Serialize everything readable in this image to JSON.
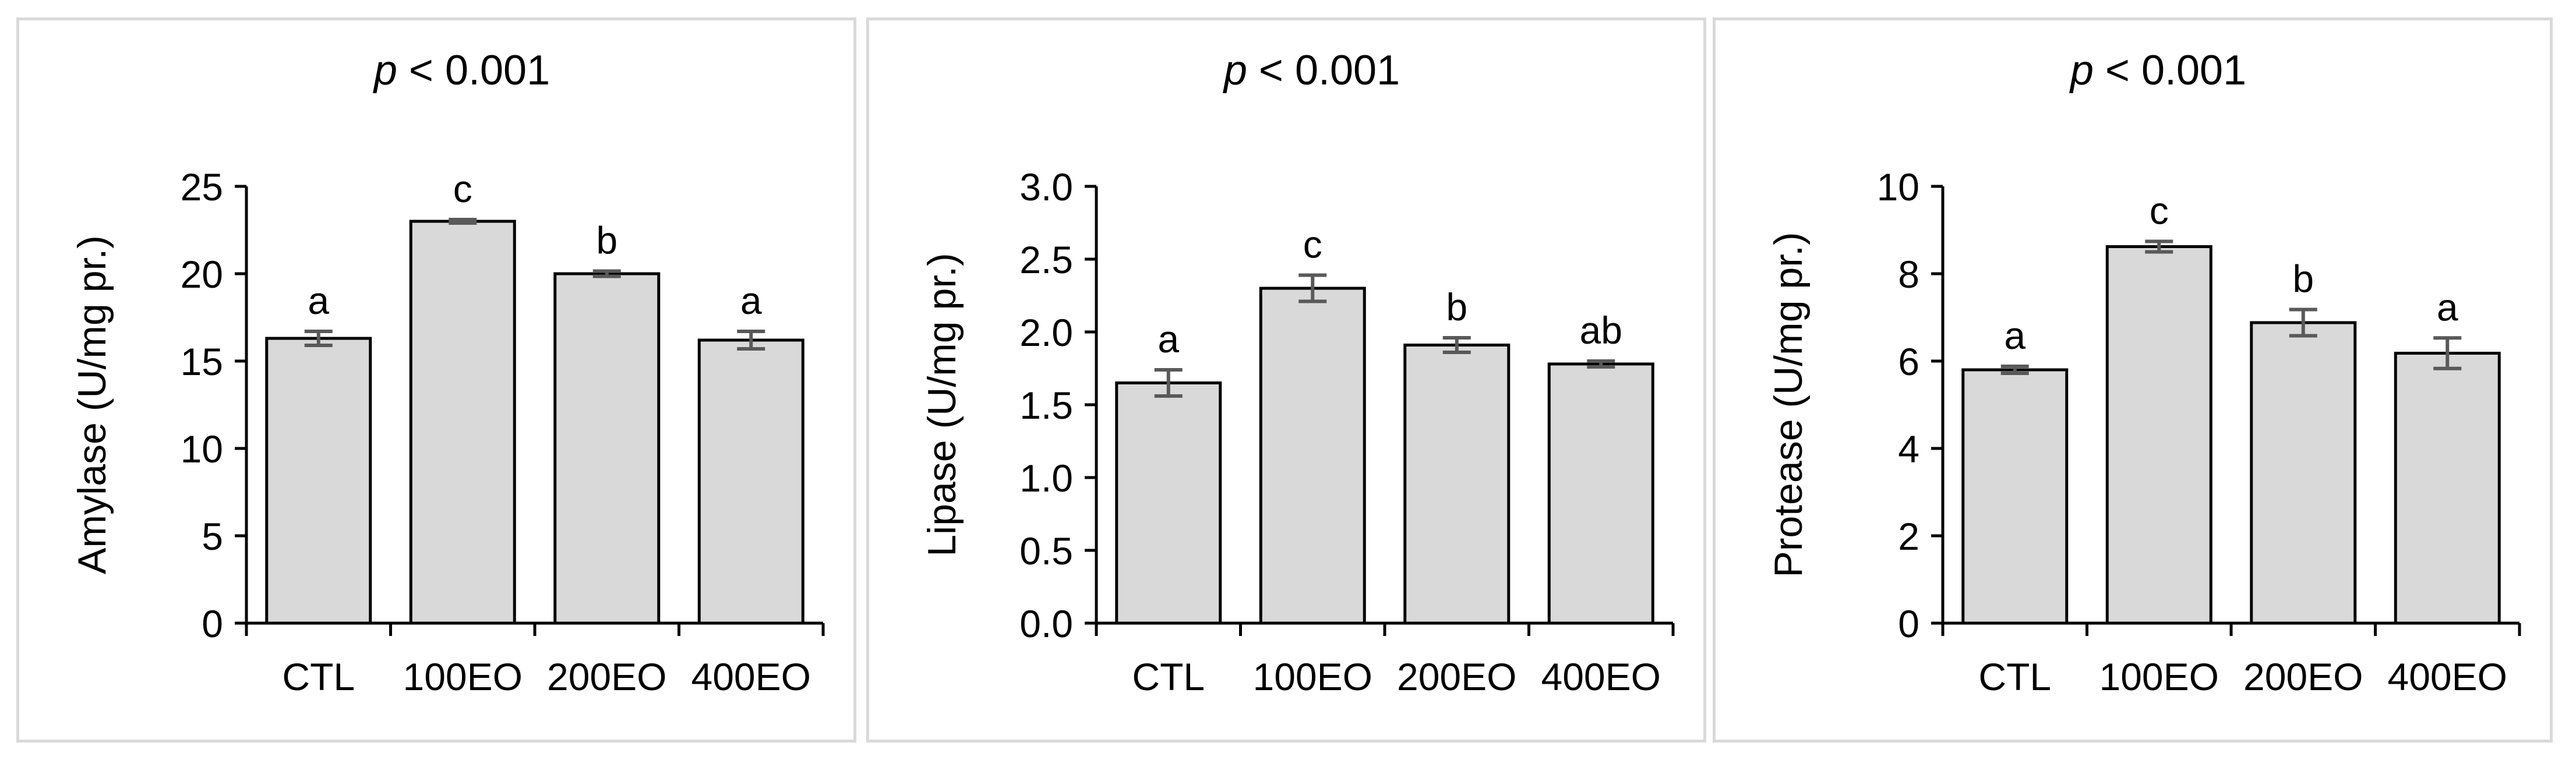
{
  "chart_data": [
    {
      "type": "bar",
      "title": "p < 0.001",
      "title_italic_part": "p",
      "title_rest": " < 0.001",
      "ylabel": "Amylase (U/mg pr.)",
      "xlabel": "",
      "categories": [
        "CTL",
        "100EO",
        "200EO",
        "400EO"
      ],
      "values": [
        16.3,
        23.0,
        20.0,
        16.2
      ],
      "errors": [
        0.4,
        0.1,
        0.15,
        0.5
      ],
      "letters": [
        "a",
        "c",
        "b",
        "a"
      ],
      "ylim": [
        0,
        25
      ],
      "yticks": [
        "0",
        "5",
        "10",
        "15",
        "20",
        "25"
      ],
      "grid": false,
      "bar_color": "#d9d9d9",
      "error_color": "#595959"
    },
    {
      "type": "bar",
      "title": "p < 0.001",
      "title_italic_part": "p",
      "title_rest": " < 0.001",
      "ylabel": "Lipase (U/mg pr.)",
      "xlabel": "",
      "categories": [
        "CTL",
        "100EO",
        "200EO",
        "400EO"
      ],
      "values": [
        1.65,
        2.3,
        1.91,
        1.78
      ],
      "errors": [
        0.09,
        0.09,
        0.05,
        0.02
      ],
      "letters": [
        "a",
        "c",
        "b",
        "ab"
      ],
      "ylim": [
        0,
        3
      ],
      "yticks": [
        "0.0",
        "0.5",
        "1.0",
        "1.5",
        "2.0",
        "2.5",
        "3.0"
      ],
      "grid": false,
      "bar_color": "#d9d9d9",
      "error_color": "#595959"
    },
    {
      "type": "bar",
      "title": "p < 0.001",
      "title_italic_part": "p",
      "title_rest": " < 0.001",
      "ylabel": "Protease (U/mg pr.)",
      "xlabel": "",
      "categories": [
        "CTL",
        "100EO",
        "200EO",
        "400EO"
      ],
      "values": [
        5.8,
        8.62,
        6.88,
        6.18
      ],
      "errors": [
        0.08,
        0.12,
        0.3,
        0.35
      ],
      "letters": [
        "a",
        "c",
        "b",
        "a"
      ],
      "ylim": [
        0,
        10
      ],
      "yticks": [
        "0",
        "2",
        "4",
        "6",
        "8",
        "10"
      ],
      "grid": false,
      "bar_color": "#d9d9d9",
      "error_color": "#595959"
    }
  ]
}
